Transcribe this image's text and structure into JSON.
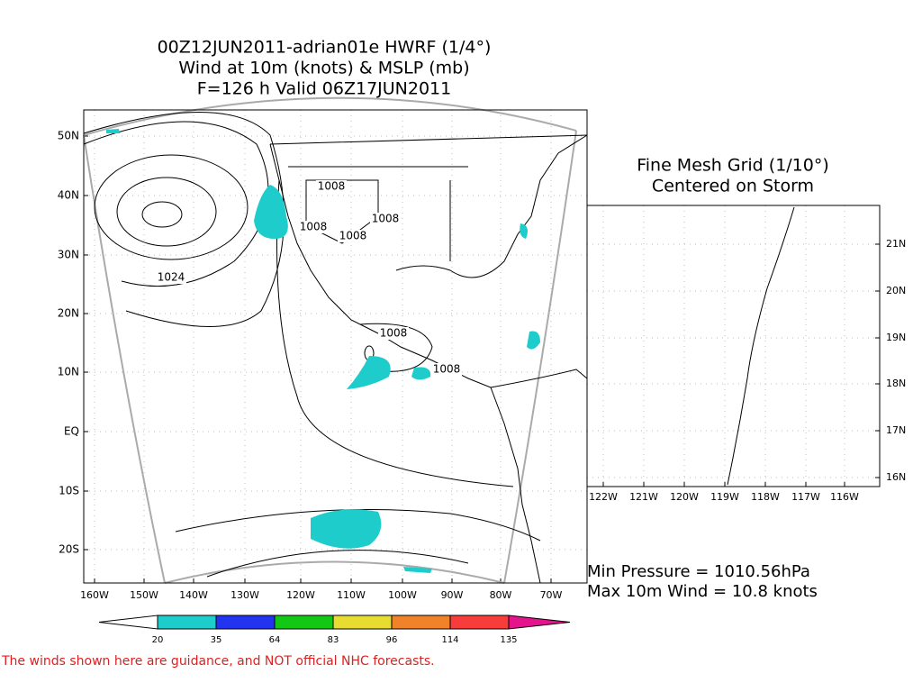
{
  "title": [
    "00Z12JUN2011-adrian01e HWRF (1/4°)",
    "Wind at 10m (knots) & MSLP (mb)",
    "F=126 h Valid 06Z17JUN2011"
  ],
  "main_map": {
    "lat_labels": [
      "50N",
      "40N",
      "30N",
      "20N",
      "10N",
      "EQ",
      "10S",
      "20S"
    ],
    "lon_labels": [
      "160W",
      "150W",
      "140W",
      "130W",
      "120W",
      "110W",
      "100W",
      "90W",
      "80W",
      "70W"
    ],
    "contour_labels": [
      "1008",
      "1008",
      "1008",
      "1008",
      "1024",
      "1008",
      "1008"
    ]
  },
  "inset": {
    "title": [
      "Fine Mesh Grid (1/10°)",
      "Centered on Storm"
    ],
    "lat_labels": [
      "21N",
      "20N",
      "19N",
      "18N",
      "17N",
      "16N"
    ],
    "lon_labels": [
      "122W",
      "121W",
      "120W",
      "119W",
      "118W",
      "117W",
      "116W"
    ]
  },
  "stats": [
    "Min Pressure = 1010.56hPa",
    "Max 10m Wind = 10.8 knots"
  ],
  "colorbar": {
    "levels": [
      20,
      35,
      64,
      83,
      96,
      114,
      135
    ],
    "colors": [
      "#1ecccc",
      "#2234f0",
      "#12c814",
      "#e6dc32",
      "#f0822a",
      "#f83c3c",
      "#e6148c"
    ]
  },
  "disclaimer": "The winds shown here are guidance, and NOT official NHC forecasts."
}
